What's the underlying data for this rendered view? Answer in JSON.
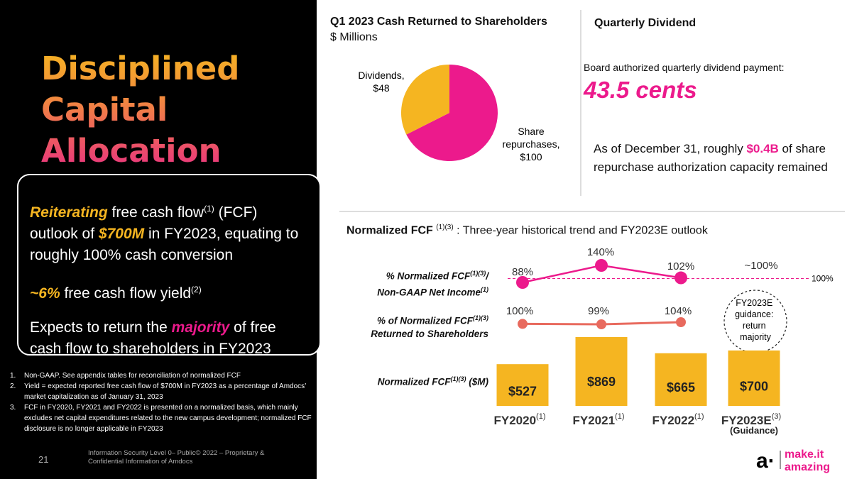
{
  "left": {
    "title_lines": [
      "Disciplined",
      "Capital",
      "Allocation"
    ],
    "callout": {
      "p1": {
        "em": "Reiterating",
        "t1": " free cash flow",
        "sup": "(1)",
        "t2": " (FCF) outlook of ",
        "em2": "$700M",
        "t3": " in FY2023, equating to roughly 100% cash conversion"
      },
      "p2": {
        "em": "~6%",
        "t1": " free cash flow yield",
        "sup": "(2)"
      },
      "p3": {
        "t1": "Expects to return the ",
        "em": "majority",
        "t2": " of free cash flow to shareholders in FY2023"
      }
    },
    "footnotes": [
      {
        "num": "1.",
        "text": "Non-GAAP. See appendix tables for reconciliation of normalized FCF"
      },
      {
        "num": "2.",
        "text": "Yield = expected reported free cash flow of $700M in FY2023 as a percentage of Amdocs’ market capitalization as of January 31, 2023"
      },
      {
        "num": "3.",
        "text": "FCF in FY2020, FY2021 and FY2022 is presented on a normalized basis, which mainly excludes net capital expenditures related to the new campus development; normalized FCF disclosure is no longer applicable in FY2023"
      }
    ],
    "page_number": "21",
    "confidential": "Information Security Level 0– Public© 2022 – Proprietary & Confidential Information of Amdocs"
  },
  "dividend": {
    "title": "Quarterly Dividend",
    "text": "Board authorized quarterly dividend payment:",
    "value": "43.5 cents",
    "note_before": "As of December 31, roughly ",
    "note_highlight": "$0.4B",
    "note_after": " of share repurchase authorization capacity remained"
  },
  "fcf": {
    "title_bold": "Normalized FCF",
    "title_sup": "(1)(3)",
    "title_rest": " : Three-year historical trend and FY2023E outlook",
    "row1": {
      "line1": "% Normalized FCF",
      "sup": "(1)(3)",
      "line1_end": "/",
      "line2": "Non-GAAP Net Income",
      "sup2": "(1)"
    },
    "row2": {
      "line1": "% of Normalized FCF",
      "sup": "(1)(3)",
      "line2": "Returned to Shareholders"
    },
    "row3": {
      "line1": "Normalized FCF",
      "sup": "(1)(3)",
      "line1_end": " ($M)"
    },
    "guidance_bubble": [
      "FY2023E",
      "guidance:",
      "return",
      "majority"
    ],
    "reference_label": "100%"
  },
  "colors": {
    "pink": "#ec1a8c",
    "yellow": "#f5b521",
    "coral": "#e86a5e",
    "black": "#000000"
  },
  "chart_data": [
    {
      "type": "pie",
      "title": "Q1 2023 Cash Returned to Shareholders",
      "subtitle": "$ Millions",
      "slices": [
        {
          "label_line1": "Dividends,",
          "label_line2": "$48",
          "value": 48,
          "color": "#f5b521"
        },
        {
          "label_line1": "Share",
          "label_line2": "repurchases,",
          "label_line3": "$100",
          "value": 100,
          "color": "#ec1a8c"
        }
      ]
    },
    {
      "type": "line",
      "series_label": "% Normalized FCF/Non-GAAP Net Income",
      "categories": [
        "FY2020",
        "FY2021",
        "FY2022",
        "FY2023E"
      ],
      "values": [
        88,
        140,
        102,
        100
      ],
      "labels": [
        "88%",
        "140%",
        "102%",
        "~100%"
      ],
      "reference_value": 100,
      "color": "#ec1a8c"
    },
    {
      "type": "line",
      "series_label": "% of Normalized FCF Returned to Shareholders",
      "categories": [
        "FY2020",
        "FY2021",
        "FY2022"
      ],
      "values": [
        100,
        99,
        104
      ],
      "labels": [
        "100%",
        "99%",
        "104%"
      ],
      "color": "#e86a5e"
    },
    {
      "type": "bar",
      "series_label": "Normalized FCF ($M)",
      "categories": [
        {
          "label": "FY2020",
          "sup": "(1)"
        },
        {
          "label": "FY2021",
          "sup": "(1)"
        },
        {
          "label": "FY2022",
          "sup": "(1)"
        },
        {
          "label": "FY2023E",
          "sup": "(3)",
          "sub": "(Guidance)"
        }
      ],
      "values": [
        527,
        869,
        665,
        700
      ],
      "labels": [
        "$527",
        "$869",
        "$665",
        "$700"
      ],
      "color": "#f5b521"
    }
  ],
  "logo": {
    "symbol": "a·",
    "line1": "make.it",
    "line2": "amazing"
  }
}
